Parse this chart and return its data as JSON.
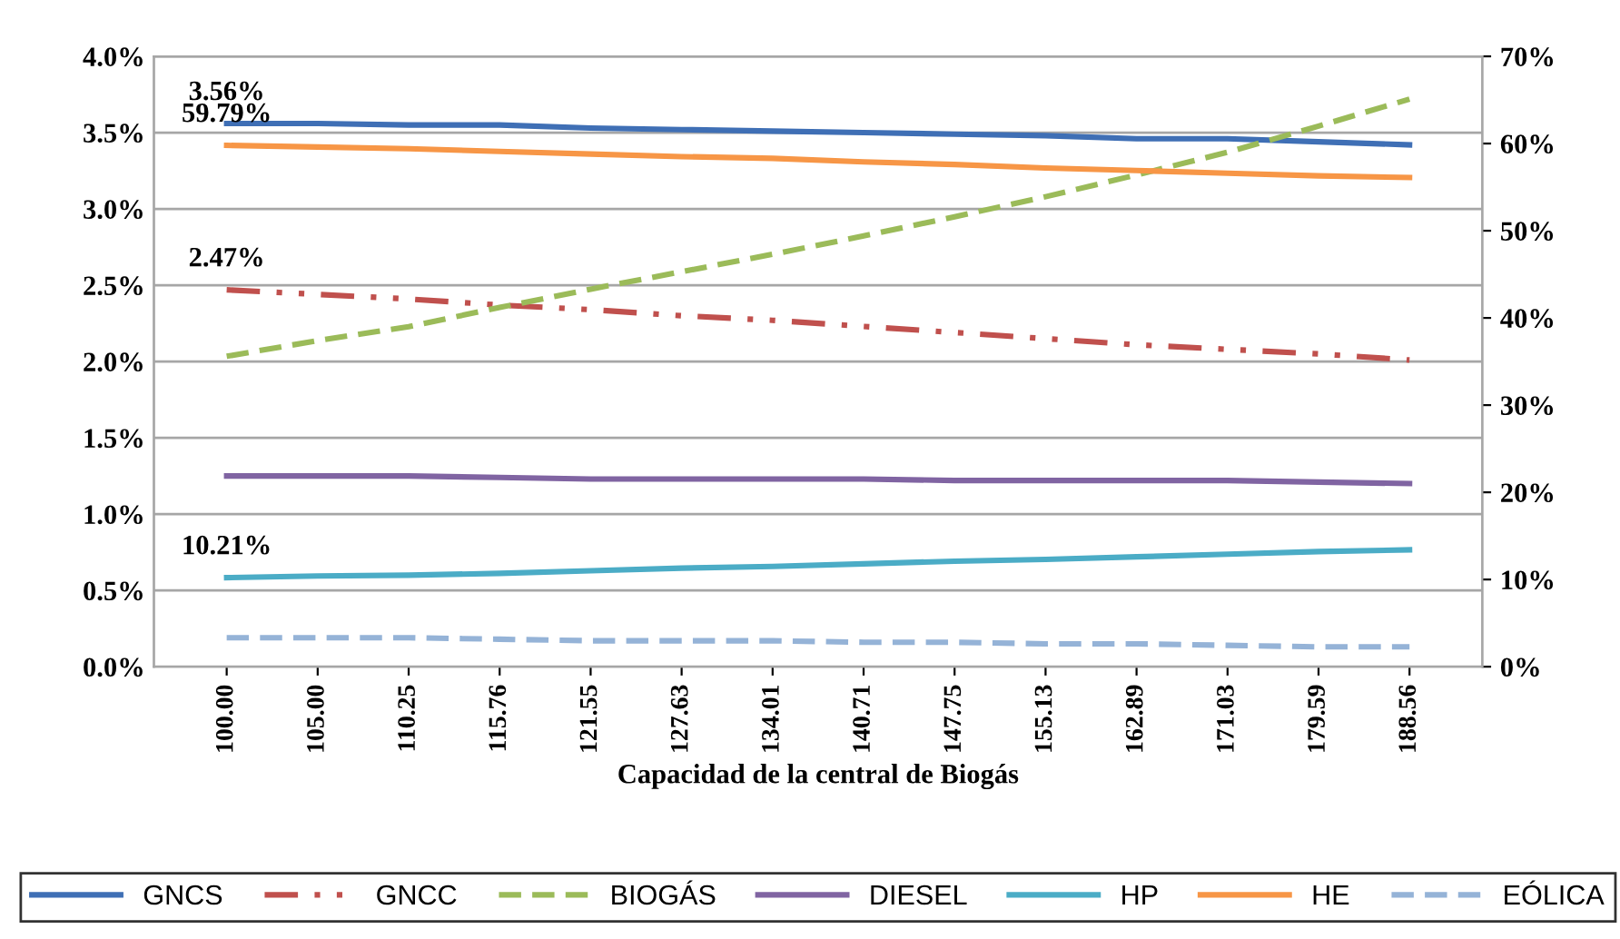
{
  "chart_data": {
    "type": "line",
    "xlabel": "Capacidad de la central de Biogás",
    "categories": [
      "100.00",
      "105.00",
      "110.25",
      "115.76",
      "121.55",
      "127.63",
      "134.01",
      "140.71",
      "147.75",
      "155.13",
      "162.89",
      "171.03",
      "179.59",
      "188.56"
    ],
    "ylim": [
      0,
      4.0
    ],
    "yticks": [
      {
        "value": 0,
        "label": "0.0%"
      },
      {
        "value": 0.5,
        "label": "0.5%"
      },
      {
        "value": 1.0,
        "label": "1.0%"
      },
      {
        "value": 1.5,
        "label": "1.5%"
      },
      {
        "value": 2.0,
        "label": "2.0%"
      },
      {
        "value": 2.5,
        "label": "2.5%"
      },
      {
        "value": 3.0,
        "label": "3.0%"
      },
      {
        "value": 3.5,
        "label": "3.5%"
      },
      {
        "value": 4.0,
        "label": "4.0%"
      }
    ],
    "y2lim": [
      0,
      70
    ],
    "y2ticks": [
      {
        "value": 0,
        "label": "0%"
      },
      {
        "value": 10,
        "label": "10%"
      },
      {
        "value": 20,
        "label": "20%"
      },
      {
        "value": 30,
        "label": "30%"
      },
      {
        "value": 40,
        "label": "40%"
      },
      {
        "value": 50,
        "label": "50%"
      },
      {
        "value": 60,
        "label": "60%"
      },
      {
        "value": 70,
        "label": "70%"
      }
    ],
    "grid": "y",
    "legend": "bottom",
    "marker": "none",
    "series": [
      {
        "name": "GNCS",
        "color": "#3f6fb5",
        "line_style": "solid",
        "values": [
          3.56,
          3.56,
          3.55,
          3.55,
          3.53,
          3.52,
          3.51,
          3.5,
          3.49,
          3.48,
          3.46,
          3.46,
          3.44,
          3.42
        ],
        "value_labels": [
          "3.56%",
          null,
          null,
          null,
          null,
          null,
          null,
          null,
          null,
          null,
          null,
          null,
          null,
          null
        ]
      },
      {
        "name": "GNCC",
        "color": "#c0504d",
        "line_style": "dashdotdot",
        "values": [
          2.47,
          2.44,
          2.41,
          2.37,
          2.34,
          2.3,
          2.27,
          2.23,
          2.19,
          2.15,
          2.11,
          2.08,
          2.05,
          2.01
        ],
        "value_labels": [
          "2.47%",
          null,
          null,
          null,
          null,
          null,
          null,
          null,
          null,
          null,
          null,
          null,
          null,
          null
        ]
      },
      {
        "name": "BIOGÁS",
        "color": "#9bbb59",
        "line_style": "dashed",
        "axis": "y2",
        "values": [
          35.6,
          37.4,
          39.0,
          41.2,
          43.3,
          45.3,
          47.3,
          49.4,
          51.6,
          53.9,
          56.4,
          59.0,
          62.0,
          65.1
        ]
      },
      {
        "name": "DIESEL",
        "color": "#8064a2",
        "line_style": "solid",
        "values": [
          1.25,
          1.25,
          1.25,
          1.24,
          1.23,
          1.23,
          1.23,
          1.23,
          1.22,
          1.22,
          1.22,
          1.22,
          1.21,
          1.2
        ]
      },
      {
        "name": "HP",
        "color": "#4bacc6",
        "line_style": "solid",
        "axis": "y2",
        "values": [
          10.21,
          10.4,
          10.5,
          10.7,
          11.0,
          11.3,
          11.5,
          11.8,
          12.1,
          12.3,
          12.6,
          12.9,
          13.2,
          13.4
        ],
        "value_labels": [
          "10.21%",
          null,
          null,
          null,
          null,
          null,
          null,
          null,
          null,
          null,
          null,
          null,
          null,
          null
        ]
      },
      {
        "name": "HE",
        "color": "#f79646",
        "line_style": "solid",
        "axis": "y2",
        "values": [
          59.79,
          59.6,
          59.4,
          59.1,
          58.8,
          58.5,
          58.3,
          57.9,
          57.6,
          57.2,
          56.9,
          56.6,
          56.3,
          56.1
        ],
        "value_labels": [
          "59.79%",
          null,
          null,
          null,
          null,
          null,
          null,
          null,
          null,
          null,
          null,
          null,
          null,
          null
        ]
      },
      {
        "name": "EÓLICA",
        "color": "#95b3d7",
        "line_style": "dashed",
        "values": [
          0.19,
          0.19,
          0.19,
          0.18,
          0.17,
          0.17,
          0.17,
          0.16,
          0.16,
          0.15,
          0.15,
          0.14,
          0.13,
          0.13
        ]
      }
    ]
  }
}
